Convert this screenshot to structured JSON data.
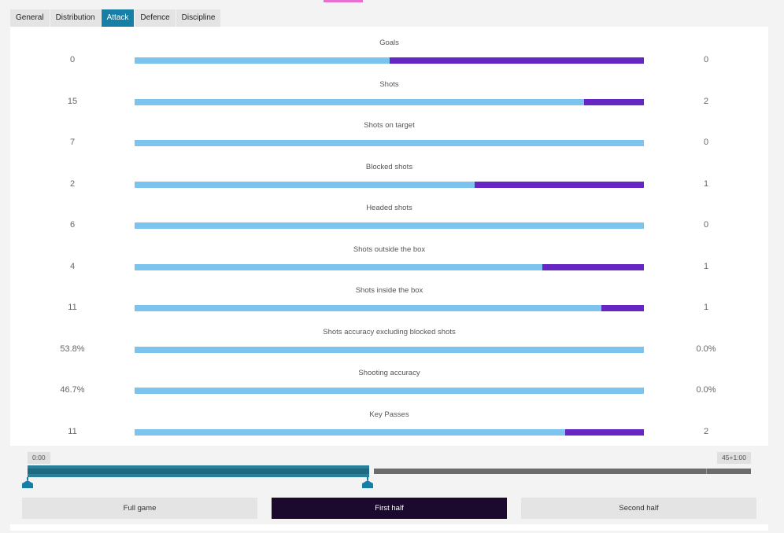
{
  "colors": {
    "home": "#7cc3ee",
    "away": "#6526c4",
    "active_tab": "#177fa6",
    "active_period": "#1c0a2e"
  },
  "tabs": [
    {
      "label": "General",
      "active": false
    },
    {
      "label": "Distribution",
      "active": false
    },
    {
      "label": "Attack",
      "active": true
    },
    {
      "label": "Defence",
      "active": false
    },
    {
      "label": "Discipline",
      "active": false
    }
  ],
  "stats": [
    {
      "label": "Goals",
      "home": "0",
      "away": "0",
      "home_share": 0.5
    },
    {
      "label": "Shots",
      "home": "15",
      "away": "2",
      "home_share": 0.882
    },
    {
      "label": "Shots on target",
      "home": "7",
      "away": "0",
      "home_share": 1.0
    },
    {
      "label": "Blocked shots",
      "home": "2",
      "away": "1",
      "home_share": 0.667
    },
    {
      "label": "Headed shots",
      "home": "6",
      "away": "0",
      "home_share": 1.0
    },
    {
      "label": "Shots outside the box",
      "home": "4",
      "away": "1",
      "home_share": 0.8
    },
    {
      "label": "Shots inside the box",
      "home": "11",
      "away": "1",
      "home_share": 0.917
    },
    {
      "label": "Shots accuracy excluding blocked shots",
      "home": "53.8%",
      "away": "0.0%",
      "home_share": 1.0
    },
    {
      "label": "Shooting accuracy",
      "home": "46.7%",
      "away": "0.0%",
      "home_share": 1.0
    },
    {
      "label": "Key Passes",
      "home": "11",
      "away": "2",
      "home_share": 0.846
    }
  ],
  "timeline": {
    "start_label": "0:00",
    "end_label": "45+1:00"
  },
  "periods": [
    {
      "label": "Full game",
      "active": false
    },
    {
      "label": "First half",
      "active": true
    },
    {
      "label": "Second half",
      "active": false
    }
  ]
}
